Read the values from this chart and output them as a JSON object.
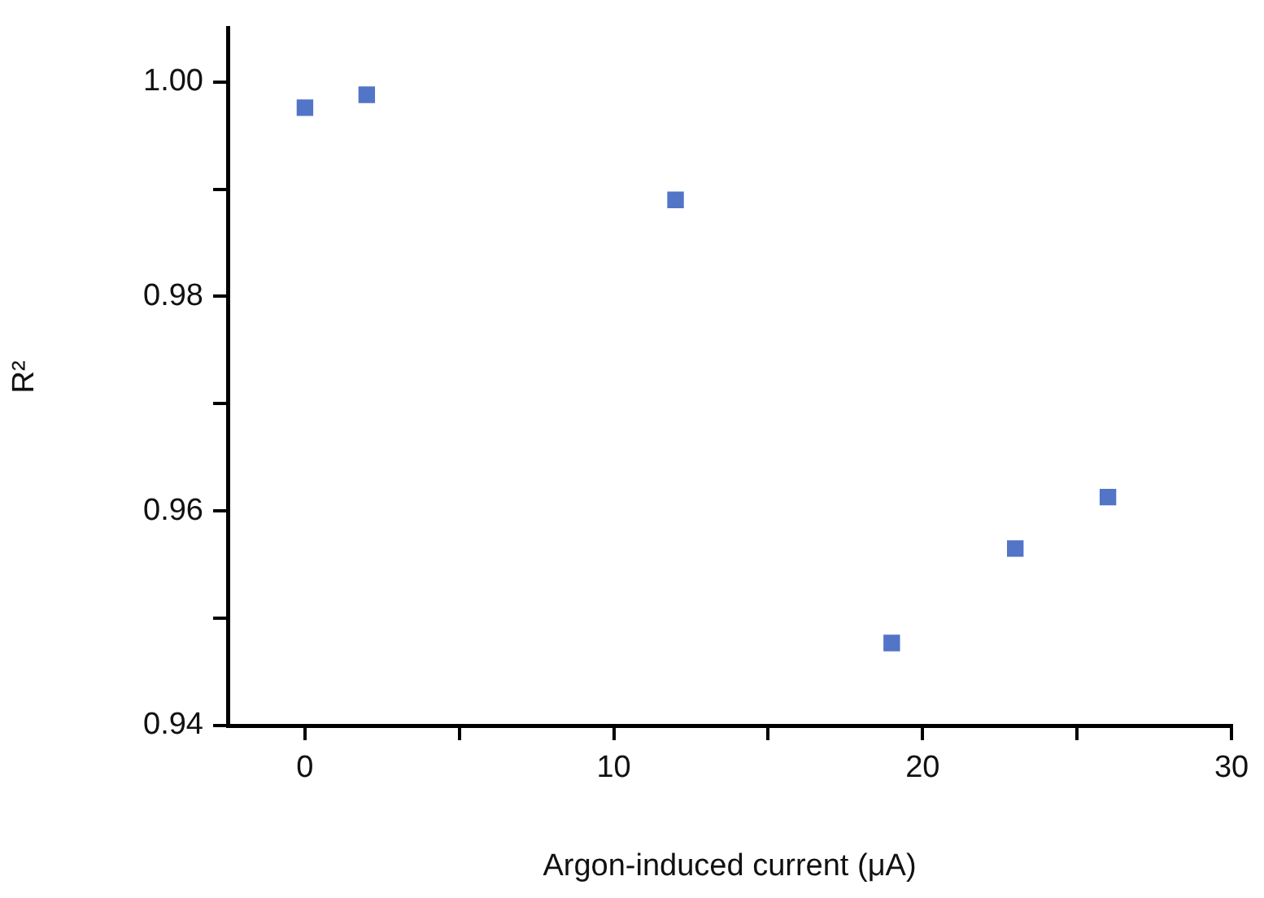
{
  "chart_data": {
    "type": "scatter",
    "xlabel": "Argon-induced current (μA)",
    "ylabel": "R²",
    "x": [
      0,
      2,
      12,
      19,
      23,
      26
    ],
    "series": [
      {
        "color": "#5275c8",
        "values": [
          0.9976,
          0.9988,
          0.989,
          0.9477,
          0.9565,
          0.9613
        ]
      }
    ],
    "marker": "square",
    "xlim": [
      -2.5,
      30
    ],
    "xticks": [
      0,
      {
        "value": 5,
        "label": null
      },
      10,
      {
        "value": 15,
        "label": null
      },
      20,
      {
        "value": 25,
        "label": null
      },
      30
    ],
    "ylim": [
      0.94,
      1.005
    ],
    "yticks": [
      "0.94",
      {
        "value": 0.95,
        "label": null
      },
      {
        "value": 0.96,
        "label": "0.96"
      },
      {
        "value": 0.97,
        "label": null
      },
      {
        "value": 0.98,
        "label": "0.98"
      },
      {
        "value": 0.99,
        "label": null
      },
      {
        "value": 1,
        "label": "1.00"
      }
    ],
    "grid": false,
    "legend": false
  }
}
